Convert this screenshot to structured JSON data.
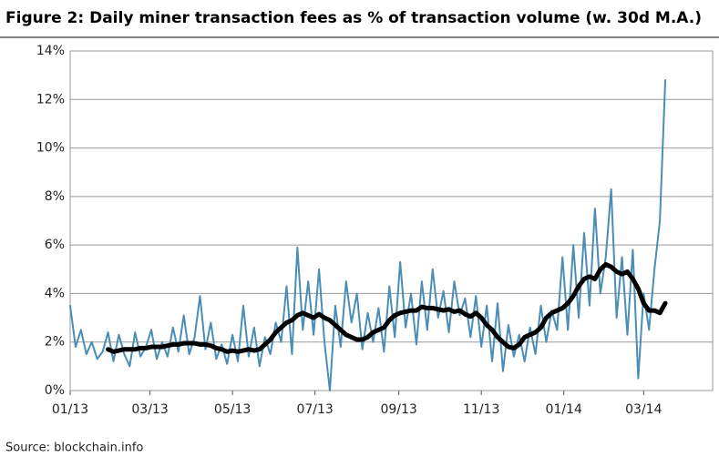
{
  "chart_data": {
    "type": "line",
    "title": "Figure 2: Daily miner transaction fees as % of transaction volume (w. 30d M.A.)",
    "source": "Source:  blockchain.info",
    "x": [
      0,
      4,
      8,
      12,
      16,
      20,
      24,
      28,
      32,
      36,
      40,
      44,
      48,
      52,
      56,
      60,
      64,
      68,
      72,
      76,
      80,
      84,
      88,
      92,
      96,
      100,
      104,
      108,
      112,
      116,
      120,
      124,
      128,
      132,
      136,
      140,
      144,
      148,
      152,
      156,
      160,
      164,
      168,
      172,
      176,
      180,
      184,
      188,
      192,
      196,
      200,
      204,
      208,
      212,
      216,
      220,
      224,
      228,
      232,
      236,
      240,
      244,
      248,
      252,
      256,
      260,
      264,
      268,
      272,
      276,
      280,
      284,
      288,
      292,
      296,
      300,
      304,
      308,
      312,
      316,
      320,
      324,
      328,
      332,
      336,
      340,
      344,
      348,
      352,
      356,
      360,
      364,
      368,
      372,
      376,
      380,
      384,
      388,
      392,
      396,
      400,
      404,
      408,
      412,
      416,
      420,
      424,
      428,
      432,
      436,
      440
    ],
    "series": [
      {
        "color": "#4a8db7",
        "width": 2,
        "values": [
          3.5,
          1.8,
          2.5,
          1.5,
          2.0,
          1.3,
          1.6,
          2.4,
          1.2,
          2.3,
          1.5,
          1.0,
          2.4,
          1.4,
          1.8,
          2.5,
          1.3,
          2.0,
          1.4,
          2.6,
          1.6,
          3.1,
          1.5,
          2.2,
          3.9,
          1.7,
          2.8,
          1.3,
          1.9,
          1.1,
          2.3,
          1.2,
          3.5,
          1.4,
          2.6,
          1.0,
          2.2,
          1.5,
          2.8,
          2.0,
          4.3,
          1.5,
          5.9,
          2.5,
          4.5,
          2.3,
          5.0,
          2.0,
          0.0,
          3.5,
          1.8,
          4.5,
          2.8,
          4.0,
          1.7,
          3.2,
          2.0,
          3.4,
          1.6,
          4.3,
          2.2,
          5.3,
          2.6,
          4.0,
          1.9,
          4.5,
          2.5,
          5.0,
          3.0,
          4.1,
          2.4,
          4.5,
          3.1,
          3.8,
          2.2,
          3.9,
          1.8,
          3.5,
          1.2,
          3.6,
          0.8,
          2.7,
          1.4,
          2.3,
          1.2,
          2.6,
          1.5,
          3.5,
          2.0,
          3.3,
          2.5,
          5.5,
          2.5,
          6.0,
          3.0,
          6.5,
          3.5,
          7.5,
          4.0,
          5.5,
          8.3,
          3.0,
          5.5,
          2.3,
          5.8,
          0.5,
          4.0,
          2.5,
          5.0,
          7.0,
          12.8
        ]
      },
      {
        "color": "#000000",
        "width": 5,
        "values": [
          null,
          null,
          null,
          null,
          null,
          null,
          null,
          1.7,
          1.6,
          1.65,
          1.7,
          1.7,
          1.7,
          1.75,
          1.75,
          1.8,
          1.8,
          1.8,
          1.85,
          1.9,
          1.9,
          1.95,
          1.95,
          1.95,
          1.9,
          1.9,
          1.85,
          1.75,
          1.7,
          1.6,
          1.65,
          1.6,
          1.65,
          1.7,
          1.65,
          1.7,
          1.9,
          2.1,
          2.4,
          2.6,
          2.8,
          2.9,
          3.1,
          3.2,
          3.1,
          3.0,
          3.15,
          3.0,
          2.9,
          2.7,
          2.5,
          2.3,
          2.2,
          2.1,
          2.1,
          2.2,
          2.4,
          2.5,
          2.6,
          2.9,
          3.1,
          3.2,
          3.25,
          3.3,
          3.3,
          3.45,
          3.4,
          3.4,
          3.35,
          3.3,
          3.35,
          3.25,
          3.3,
          3.15,
          3.05,
          3.2,
          3.0,
          2.7,
          2.5,
          2.2,
          2.0,
          1.8,
          1.75,
          1.9,
          2.2,
          2.3,
          2.4,
          2.6,
          3.0,
          3.2,
          3.3,
          3.4,
          3.6,
          3.9,
          4.3,
          4.6,
          4.7,
          4.6,
          5.0,
          5.2,
          5.1,
          4.9,
          4.8,
          4.9,
          4.6,
          4.2,
          3.6,
          3.3,
          3.3,
          3.2,
          3.6
        ]
      }
    ],
    "xlim": [
      0,
      475
    ],
    "xticks": [
      {
        "value": 0,
        "label": "01/13"
      },
      {
        "value": 59,
        "label": "03/13"
      },
      {
        "value": 120,
        "label": "05/13"
      },
      {
        "value": 181,
        "label": "07/13"
      },
      {
        "value": 243,
        "label": "09/13"
      },
      {
        "value": 304,
        "label": "11/13"
      },
      {
        "value": 365,
        "label": "01/14"
      },
      {
        "value": 424,
        "label": "03/14"
      }
    ],
    "ylim": [
      0,
      14
    ],
    "yticks": [
      {
        "value": 0,
        "label": "0%"
      },
      {
        "value": 2,
        "label": "2%"
      },
      {
        "value": 4,
        "label": "4%"
      },
      {
        "value": 6,
        "label": "6%"
      },
      {
        "value": 8,
        "label": "8%"
      },
      {
        "value": 10,
        "label": "10%"
      },
      {
        "value": 12,
        "label": "12%"
      },
      {
        "value": 14,
        "label": "14%"
      }
    ],
    "grid": true
  }
}
